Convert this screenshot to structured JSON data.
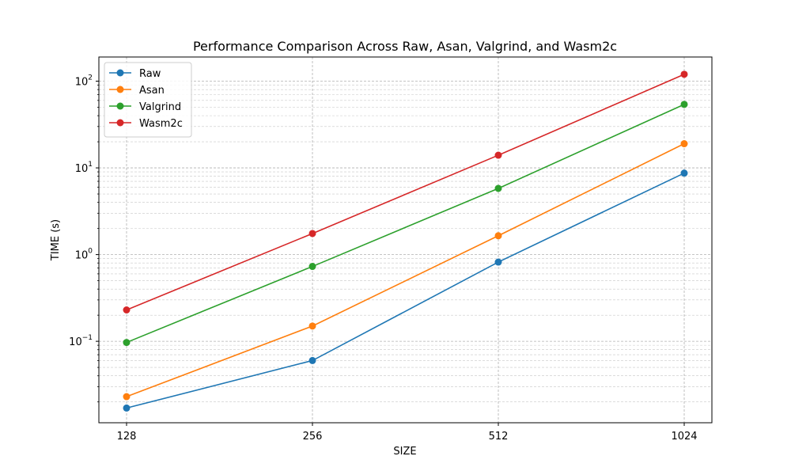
{
  "chart_data": {
    "type": "line",
    "title": "Performance Comparison Across Raw, Asan, Valgrind, and Wasm2c",
    "xlabel": "SIZE",
    "ylabel": "TIME (s)",
    "x": [
      128,
      256,
      512,
      1024
    ],
    "x_tick_labels": [
      "128",
      "256",
      "512",
      "1024"
    ],
    "y_scale": "log",
    "ylim": [
      0.0115,
      190
    ],
    "y_ticks": [
      {
        "value": 0.1,
        "base": "10",
        "exp": "−1"
      },
      {
        "value": 1,
        "base": "10",
        "exp": "0"
      },
      {
        "value": 10,
        "base": "10",
        "exp": "1"
      },
      {
        "value": 100,
        "base": "10",
        "exp": "2"
      }
    ],
    "grid": true,
    "legend_position": "top-left",
    "series": [
      {
        "name": "Raw",
        "color": "#1f77b4",
        "values": [
          0.017,
          0.06,
          0.82,
          8.7
        ]
      },
      {
        "name": "Asan",
        "color": "#ff7f0e",
        "values": [
          0.023,
          0.15,
          1.65,
          19
        ]
      },
      {
        "name": "Valgrind",
        "color": "#2ca02c",
        "values": [
          0.097,
          0.73,
          5.8,
          54
        ]
      },
      {
        "name": "Wasm2c",
        "color": "#d62728",
        "values": [
          0.23,
          1.75,
          14,
          120
        ]
      }
    ]
  }
}
